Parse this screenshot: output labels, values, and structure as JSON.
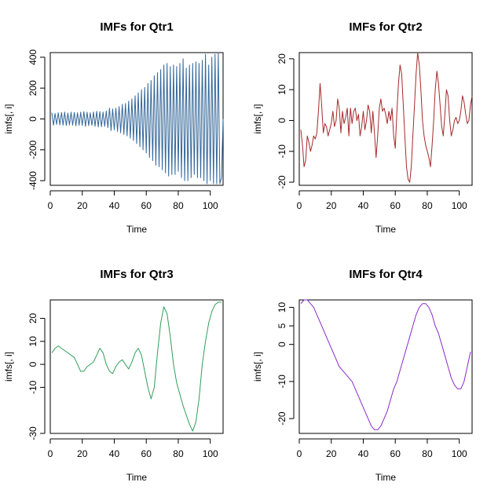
{
  "chart_data": [
    {
      "type": "line",
      "title": "IMFs for Qtr1",
      "xlabel": "Time",
      "ylabel": "imfs[, i]",
      "color": "#336699",
      "xlim": [
        0,
        108
      ],
      "ylim": [
        -430,
        430
      ],
      "xticks": [
        0,
        20,
        40,
        60,
        80,
        100
      ],
      "yticks": [
        -400,
        -200,
        0,
        200,
        400
      ],
      "x": [
        1,
        2,
        3,
        4,
        5,
        6,
        7,
        8,
        9,
        10,
        11,
        12,
        13,
        14,
        15,
        16,
        17,
        18,
        19,
        20,
        21,
        22,
        23,
        24,
        25,
        26,
        27,
        28,
        29,
        30,
        31,
        32,
        33,
        34,
        35,
        36,
        37,
        38,
        39,
        40,
        41,
        42,
        43,
        44,
        45,
        46,
        47,
        48,
        49,
        50,
        51,
        52,
        53,
        54,
        55,
        56,
        57,
        58,
        59,
        60,
        61,
        62,
        63,
        64,
        65,
        66,
        67,
        68,
        69,
        70,
        71,
        72,
        73,
        74,
        75,
        76,
        77,
        78,
        79,
        80,
        81,
        82,
        83,
        84,
        85,
        86,
        87,
        88,
        89,
        90,
        91,
        92,
        93,
        94,
        95,
        96,
        97,
        98,
        99,
        100,
        101,
        102,
        103,
        104,
        105,
        106,
        107,
        108
      ],
      "values": [
        40,
        -40,
        35,
        -35,
        40,
        -38,
        42,
        -40,
        45,
        -42,
        38,
        -38,
        44,
        -40,
        42,
        -45,
        40,
        -40,
        44,
        -42,
        48,
        -48,
        44,
        -44,
        40,
        -42,
        46,
        -48,
        50,
        -52,
        48,
        -50,
        45,
        -48,
        52,
        -56,
        70,
        -75,
        65,
        -70,
        70,
        -80,
        80,
        -90,
        95,
        -100,
        100,
        -110,
        115,
        -125,
        130,
        -140,
        150,
        -160,
        170,
        -180,
        190,
        -200,
        205,
        -220,
        230,
        -250,
        250,
        -270,
        280,
        -300,
        300,
        -310,
        320,
        -330,
        350,
        -350,
        360,
        -370,
        340,
        -360,
        350,
        -360,
        340,
        -340,
        360,
        -380,
        390,
        -400,
        330,
        -400,
        350,
        -380,
        360,
        -360,
        370,
        -380,
        360,
        -380,
        380,
        -400,
        420,
        -420,
        350,
        -400,
        400,
        -420,
        420,
        -420,
        430,
        -420,
        -380,
        0
      ],
      "series": [
        {
          "name": "Qtr1"
        }
      ]
    },
    {
      "type": "line",
      "title": "IMFs for Qtr2",
      "xlabel": "Time",
      "ylabel": "imfs[, i]",
      "color": "#A52A2A",
      "xlim": [
        0,
        108
      ],
      "ylim": [
        -21,
        22
      ],
      "xticks": [
        0,
        20,
        40,
        60,
        80,
        100
      ],
      "yticks": [
        -20,
        -10,
        0,
        10,
        20
      ],
      "x": [
        1,
        2,
        3,
        4,
        5,
        6,
        7,
        8,
        9,
        10,
        11,
        12,
        13,
        14,
        15,
        16,
        17,
        18,
        19,
        20,
        21,
        22,
        23,
        24,
        25,
        26,
        27,
        28,
        29,
        30,
        31,
        32,
        33,
        34,
        35,
        36,
        37,
        38,
        39,
        40,
        41,
        42,
        43,
        44,
        45,
        46,
        47,
        48,
        49,
        50,
        51,
        52,
        53,
        54,
        55,
        56,
        57,
        58,
        59,
        60,
        61,
        62,
        63,
        64,
        65,
        66,
        67,
        68,
        69,
        70,
        71,
        72,
        73,
        74,
        75,
        76,
        77,
        78,
        79,
        80,
        81,
        82,
        83,
        84,
        85,
        86,
        87,
        88,
        89,
        90,
        91,
        92,
        93,
        94,
        95,
        96,
        97,
        98,
        99,
        100,
        101,
        102,
        103,
        104,
        105,
        106,
        107,
        108
      ],
      "values": [
        -3,
        -8,
        -15,
        -13,
        -5,
        -7,
        -10,
        -8,
        -5,
        -6,
        -4,
        3,
        12,
        5,
        -4,
        -1,
        -2,
        -5,
        -3,
        -1,
        3,
        -2,
        0,
        7,
        4,
        -4,
        3,
        -1,
        1,
        4,
        -5,
        4,
        -1,
        3,
        4,
        0,
        2,
        -5,
        -2,
        3,
        -3,
        0,
        5,
        3,
        -4,
        3,
        -4,
        -12,
        -5,
        4,
        7,
        3,
        4,
        2,
        -1,
        3,
        0,
        4,
        -5,
        -9,
        3,
        12,
        18,
        15,
        5,
        -5,
        -15,
        -19,
        -20,
        -15,
        -5,
        5,
        15,
        22,
        18,
        10,
        0,
        -5,
        -8,
        -10,
        -12,
        -15,
        -8,
        0,
        10,
        16,
        12,
        5,
        -2,
        -5,
        2,
        10,
        8,
        0,
        -5,
        -3,
        0,
        1,
        -1,
        0,
        3,
        8,
        6,
        2,
        -1,
        0,
        5,
        8
      ],
      "series": [
        {
          "name": "Qtr2"
        }
      ]
    },
    {
      "type": "line",
      "title": "IMFs for Qtr3",
      "xlabel": "Time",
      "ylabel": "imfs[, i]",
      "color": "#2E9E5B",
      "xlim": [
        0,
        108
      ],
      "ylim": [
        -30,
        28
      ],
      "xticks": [
        0,
        20,
        40,
        60,
        80,
        100
      ],
      "yticks": [
        -30,
        -10,
        0,
        10,
        20
      ],
      "x": [
        1,
        3,
        5,
        7,
        9,
        11,
        13,
        15,
        17,
        19,
        21,
        23,
        25,
        27,
        29,
        31,
        33,
        35,
        37,
        39,
        41,
        43,
        45,
        47,
        49,
        51,
        53,
        55,
        57,
        59,
        61,
        63,
        65,
        67,
        69,
        71,
        73,
        75,
        77,
        79,
        81,
        83,
        85,
        87,
        89,
        91,
        93,
        95,
        97,
        99,
        101,
        103,
        105,
        107
      ],
      "values": [
        5,
        7,
        8,
        7,
        6,
        5,
        4,
        3,
        0,
        -3,
        -3,
        -1,
        0,
        1,
        4,
        7,
        5,
        0,
        -3,
        -4,
        -1,
        1,
        2,
        0,
        -2,
        1,
        5,
        7,
        4,
        -3,
        -10,
        -15,
        -10,
        5,
        18,
        25,
        22,
        12,
        0,
        -8,
        -13,
        -18,
        -22,
        -26,
        -29,
        -25,
        -15,
        0,
        10,
        18,
        23,
        26,
        27,
        27
      ],
      "series": [
        {
          "name": "Qtr3"
        }
      ]
    },
    {
      "type": "line",
      "title": "IMFs for Qtr4",
      "xlabel": "Time",
      "ylabel": "imfs[, i]",
      "color": "#8B2BC8",
      "xlim": [
        0,
        108
      ],
      "ylim": [
        -24,
        12
      ],
      "xticks": [
        0,
        20,
        40,
        60,
        80,
        100
      ],
      "yticks": [
        -20,
        -10,
        0,
        5,
        10
      ],
      "x": [
        1,
        3,
        5,
        7,
        9,
        11,
        13,
        15,
        17,
        19,
        21,
        23,
        25,
        27,
        29,
        31,
        33,
        35,
        37,
        39,
        41,
        43,
        45,
        47,
        49,
        51,
        53,
        55,
        57,
        59,
        61,
        63,
        65,
        67,
        69,
        71,
        73,
        75,
        77,
        79,
        81,
        83,
        85,
        87,
        89,
        91,
        93,
        95,
        97,
        99,
        101,
        103,
        105,
        107
      ],
      "values": [
        11,
        12,
        12,
        11,
        10,
        8,
        6,
        4,
        2,
        0,
        -2,
        -4,
        -6,
        -7,
        -8,
        -9,
        -10,
        -12,
        -14,
        -16,
        -18,
        -20,
        -22,
        -23,
        -23,
        -22,
        -20,
        -18,
        -15,
        -12,
        -10,
        -7,
        -4,
        -1,
        2,
        5,
        8,
        10,
        11,
        11,
        10,
        8,
        5,
        3,
        0,
        -3,
        -6,
        -9,
        -11,
        -12,
        -12,
        -10,
        -6,
        -2
      ],
      "series": [
        {
          "name": "Qtr4"
        }
      ]
    }
  ]
}
